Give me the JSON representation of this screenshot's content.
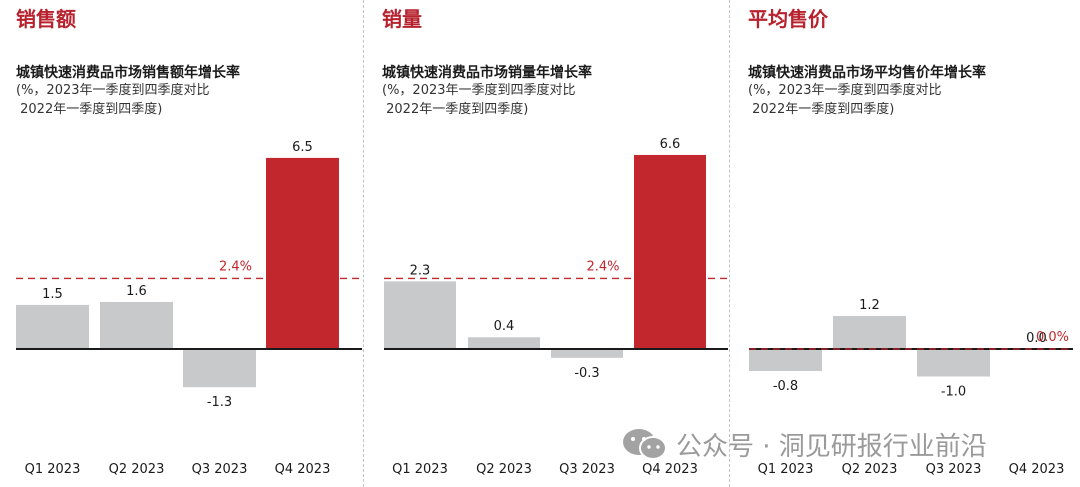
{
  "colors": {
    "accent": "#b7222e",
    "bar_gray": "#c8c9cb",
    "bar_red": "#c1272d",
    "baseline": "#1a1a1a",
    "divider": "#c4c4c4"
  },
  "watermark": {
    "text": "公众号 · 洞见研报行业前沿",
    "icon": "wechat-icon"
  },
  "chart_data": [
    {
      "type": "bar",
      "section": "销售额",
      "title": "城镇快速消费品市场销售额年增长率",
      "subtitle_line1": "(%，2023年一季度到四季度对比",
      "subtitle_line2": " 2022年一季度到四季度)",
      "categories": [
        "Q1 2023",
        "Q2 2023",
        "Q3 2023",
        "Q4 2023"
      ],
      "values": [
        1.5,
        1.6,
        -1.3,
        6.5
      ],
      "value_labels": [
        "1.5",
        "1.6",
        "-1.3",
        "6.5"
      ],
      "highlight_index": 3,
      "reference": {
        "value": 2.4,
        "label": "2.4%"
      }
    },
    {
      "type": "bar",
      "section": "销量",
      "title": "城镇快速消费品市场销量年增长率",
      "subtitle_line1": "(%，2023年一季度到四季度对比",
      "subtitle_line2": " 2022年一季度到四季度)",
      "categories": [
        "Q1 2023",
        "Q2 2023",
        "Q3 2023",
        "Q4 2023"
      ],
      "values": [
        2.3,
        0.4,
        -0.3,
        6.6
      ],
      "value_labels": [
        "2.3",
        "0.4",
        "-0.3",
        "6.6"
      ],
      "highlight_index": 3,
      "reference": {
        "value": 2.4,
        "label": "2.4%"
      }
    },
    {
      "type": "bar",
      "section": "平均售价",
      "title": "城镇快速消费品市场平均售价年增长率",
      "subtitle_line1": "(%，2023年一季度到四季度对比",
      "subtitle_line2": " 2022年一季度到四季度)",
      "categories": [
        "Q1 2023",
        "Q2 2023",
        "Q3 2023",
        "Q4 2023"
      ],
      "values": [
        -0.8,
        1.2,
        -1.0,
        0.0
      ],
      "value_labels": [
        "-0.8",
        "1.2",
        "-1.0",
        "0.0"
      ],
      "highlight_index": 3,
      "reference": {
        "value": 0.0,
        "label": "0.0%"
      }
    }
  ]
}
